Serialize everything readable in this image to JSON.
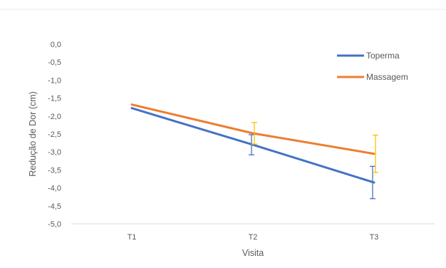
{
  "chart_data": {
    "type": "line",
    "title": "",
    "xlabel": "Visita",
    "ylabel": "Redução de Dor (cm)",
    "categories": [
      "T1",
      "T2",
      "T3"
    ],
    "ylim": [
      -5.0,
      0.0
    ],
    "ytick_step": 0.5,
    "yticks": [
      "0,0",
      "-0,5",
      "-1,0",
      "-1,5",
      "-2,0",
      "-2,5",
      "-3,0",
      "-3,5",
      "-4,0",
      "-4,5",
      "-5,0"
    ],
    "grid": false,
    "legend_position": "top-right",
    "series": [
      {
        "name": "Toperma",
        "color": "#4472C4",
        "values": [
          -1.78,
          -2.8,
          -3.85
        ],
        "error": [
          null,
          0.28,
          0.45
        ]
      },
      {
        "name": "Massagem",
        "color": "#ED7D31",
        "values": [
          -1.68,
          -2.48,
          -3.05
        ],
        "error": [
          null,
          0.3,
          0.52
        ]
      }
    ],
    "errorbar_color": "#FFC000"
  }
}
